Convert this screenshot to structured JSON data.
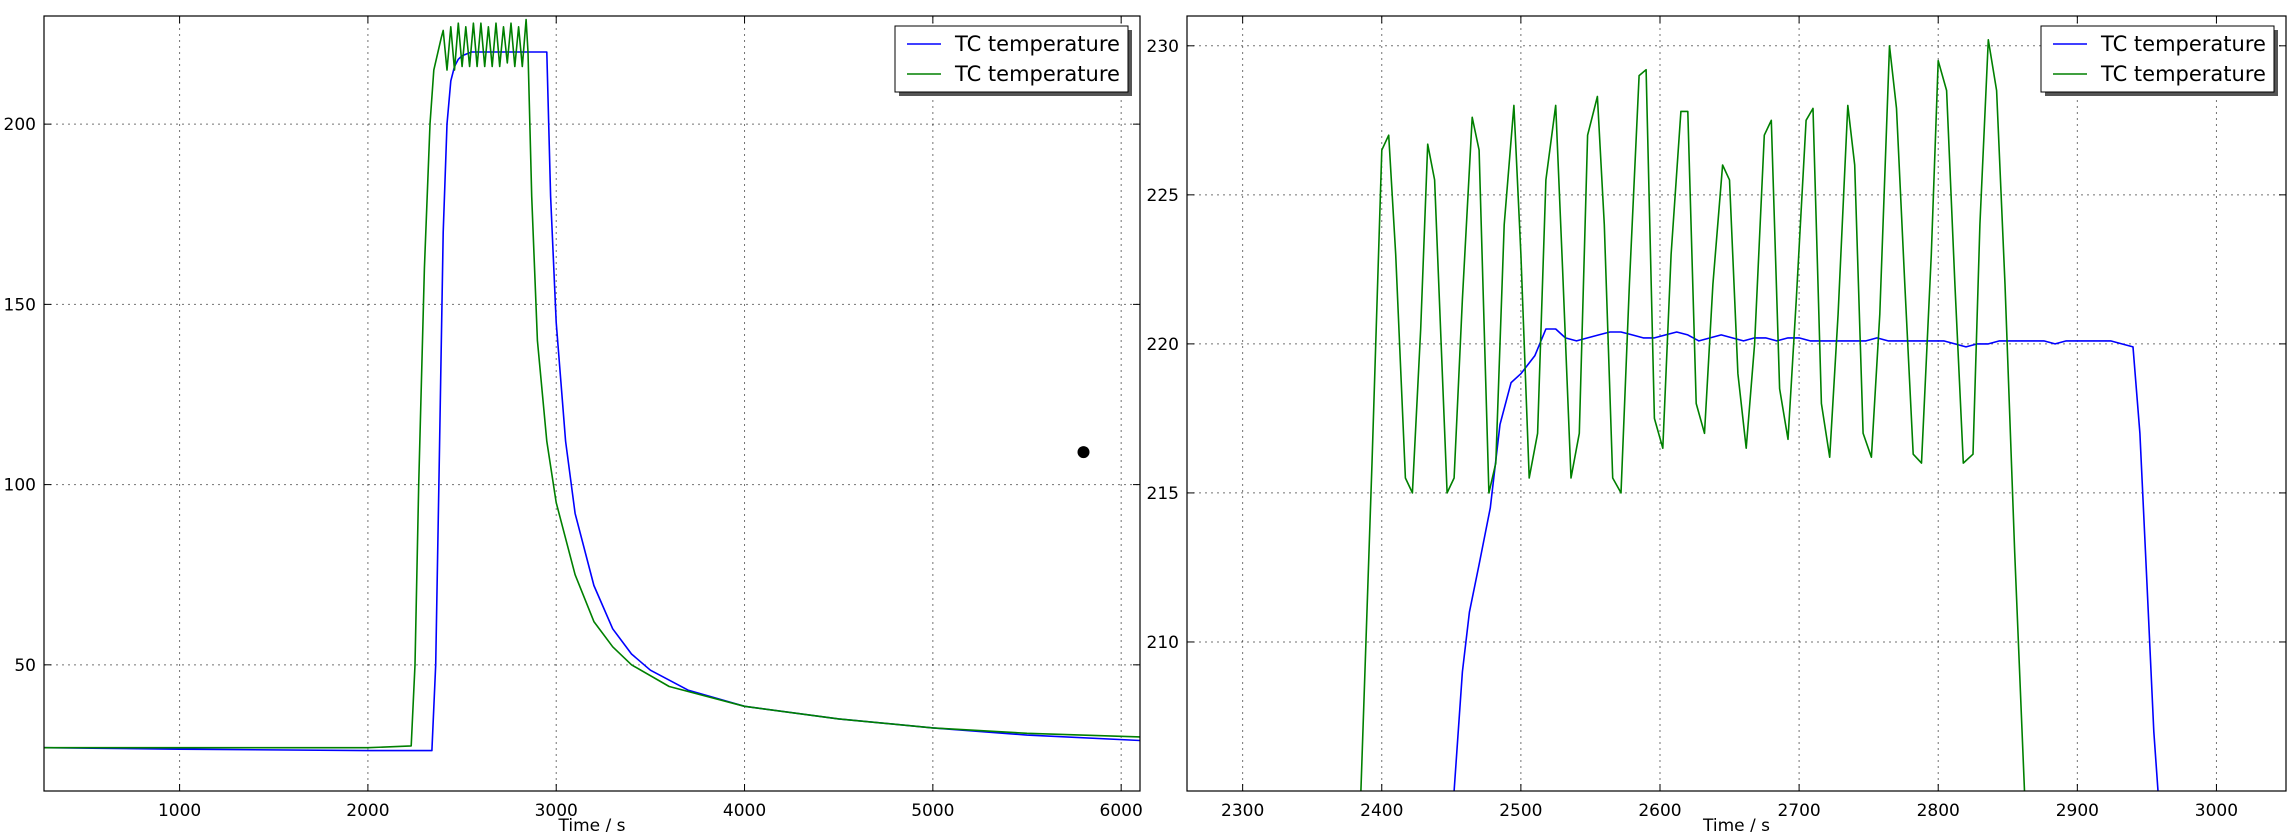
{
  "chart_data": [
    {
      "type": "line",
      "title": "",
      "xlabel": "Time / s",
      "ylabel": "",
      "xlim": [
        280,
        6100
      ],
      "ylim": [
        15,
        230
      ],
      "xticks": [
        1000,
        2000,
        3000,
        4000,
        5000,
        6000
      ],
      "yticks": [
        50,
        100,
        150,
        200
      ],
      "grid": true,
      "legend_position": "top-right",
      "series": [
        {
          "name": "TC temperature",
          "color": "#0000ff",
          "x": [
            280,
            1000,
            2000,
            2340,
            2360,
            2380,
            2400,
            2420,
            2440,
            2460,
            2480,
            2500,
            2550,
            2600,
            2700,
            2800,
            2900,
            2950,
            2970,
            3000,
            3050,
            3100,
            3200,
            3300,
            3400,
            3500,
            3700,
            4000,
            4500,
            5000,
            5500,
            6100
          ],
          "y": [
            27,
            26.6,
            26.2,
            26.2,
            50,
            110,
            170,
            200,
            212,
            216,
            218,
            219,
            220,
            220,
            220,
            220,
            220,
            220,
            180,
            145,
            112,
            92,
            72,
            60,
            53,
            48.5,
            43,
            38.5,
            35,
            32.5,
            30.5,
            29
          ]
        },
        {
          "name": "TC temperature",
          "color": "#008000",
          "x": [
            280,
            1000,
            2000,
            2230,
            2250,
            2270,
            2300,
            2330,
            2350,
            2390,
            2400,
            2420,
            2440,
            2460,
            2480,
            2500,
            2520,
            2540,
            2560,
            2580,
            2600,
            2620,
            2640,
            2660,
            2680,
            2700,
            2720,
            2740,
            2760,
            2780,
            2800,
            2820,
            2840,
            2850,
            2870,
            2900,
            2950,
            3000,
            3100,
            3200,
            3300,
            3400,
            3600,
            4000,
            4500,
            5000,
            5500,
            6100
          ],
          "y": [
            27,
            27,
            27,
            27.5,
            50,
            100,
            160,
            200,
            215,
            224,
            226,
            215,
            227,
            215,
            228,
            216,
            227,
            216,
            228,
            216,
            228,
            216,
            227,
            216,
            228,
            216,
            227,
            217,
            228,
            216,
            227,
            216,
            229,
            220,
            180,
            140,
            112,
            95,
            75,
            62,
            55,
            50,
            44,
            38.5,
            35,
            32.5,
            31,
            30
          ]
        }
      ],
      "annotations": [
        {
          "type": "marker",
          "x": 5800,
          "y": 109
        }
      ]
    },
    {
      "type": "line",
      "title": "",
      "xlabel": "Time / s",
      "ylabel": "",
      "xlim": [
        2260,
        3050
      ],
      "ylim": [
        205,
        231
      ],
      "xticks": [
        2300,
        2400,
        2500,
        2600,
        2700,
        2800,
        2900,
        3000
      ],
      "yticks": [
        210,
        215,
        220,
        225,
        230
      ],
      "grid": true,
      "legend_position": "top-right",
      "series": [
        {
          "name": "TC temperature",
          "color": "#0000ff",
          "x": [
            2452,
            2458,
            2463,
            2470,
            2478,
            2485,
            2493,
            2500,
            2510,
            2518,
            2525,
            2532,
            2540,
            2548,
            2556,
            2564,
            2572,
            2580,
            2588,
            2596,
            2604,
            2612,
            2620,
            2628,
            2636,
            2644,
            2652,
            2660,
            2668,
            2676,
            2684,
            2692,
            2700,
            2708,
            2716,
            2724,
            2732,
            2740,
            2748,
            2756,
            2764,
            2772,
            2780,
            2788,
            2796,
            2804,
            2812,
            2820,
            2828,
            2836,
            2844,
            2852,
            2860,
            2868,
            2876,
            2884,
            2892,
            2900,
            2908,
            2916,
            2924,
            2932,
            2940,
            2945,
            2950,
            2955,
            2958
          ],
          "y": [
            205,
            209,
            211,
            212.6,
            214.5,
            217.3,
            218.7,
            219,
            219.6,
            220.5,
            220.5,
            220.2,
            220.1,
            220.2,
            220.3,
            220.4,
            220.4,
            220.3,
            220.2,
            220.2,
            220.3,
            220.4,
            220.3,
            220.1,
            220.2,
            220.3,
            220.2,
            220.1,
            220.2,
            220.2,
            220.1,
            220.2,
            220.2,
            220.1,
            220.1,
            220.1,
            220.1,
            220.1,
            220.1,
            220.2,
            220.1,
            220.1,
            220.1,
            220.1,
            220.1,
            220.1,
            220,
            219.9,
            220,
            220,
            220.1,
            220.1,
            220.1,
            220.1,
            220.1,
            220,
            220.1,
            220.1,
            220.1,
            220.1,
            220.1,
            220,
            219.9,
            217,
            212,
            207,
            205
          ]
        },
        {
          "name": "TC temperature",
          "color": "#008000",
          "x": [
            2385,
            2393,
            2400,
            2405,
            2410,
            2417,
            2422,
            2428,
            2433,
            2438,
            2447,
            2452,
            2458,
            2465,
            2470,
            2477,
            2482,
            2488,
            2495,
            2500,
            2506,
            2512,
            2518,
            2525,
            2530,
            2536,
            2542,
            2548,
            2555,
            2560,
            2566,
            2572,
            2578,
            2585,
            2590,
            2596,
            2602,
            2608,
            2615,
            2620,
            2626,
            2632,
            2638,
            2645,
            2650,
            2656,
            2662,
            2668,
            2675,
            2680,
            2686,
            2692,
            2698,
            2705,
            2710,
            2716,
            2722,
            2728,
            2735,
            2740,
            2746,
            2752,
            2758,
            2765,
            2770,
            2776,
            2782,
            2788,
            2795,
            2800,
            2806,
            2812,
            2818,
            2825,
            2830,
            2836,
            2842,
            2848,
            2855,
            2862
          ],
          "y": [
            205,
            216,
            226.5,
            227,
            223,
            215.5,
            215,
            220.5,
            226.7,
            225.5,
            215,
            215.5,
            221.5,
            227.6,
            226.5,
            215,
            216,
            224,
            228,
            223,
            215.5,
            217,
            225.5,
            228,
            222.5,
            215.5,
            217,
            227,
            228.3,
            224,
            215.5,
            215,
            222,
            229,
            229.2,
            217.5,
            216.5,
            223,
            227.8,
            227.8,
            218,
            217,
            222,
            226,
            225.5,
            219,
            216.5,
            220,
            227,
            227.5,
            218.5,
            216.8,
            221.5,
            227.5,
            227.9,
            218,
            216.2,
            221,
            228,
            226,
            217,
            216.2,
            221,
            230,
            227.9,
            222,
            216.3,
            216,
            223,
            229.5,
            228.5,
            222,
            216,
            216.3,
            224,
            230.2,
            228.5,
            222,
            213,
            205
          ]
        }
      ]
    }
  ]
}
